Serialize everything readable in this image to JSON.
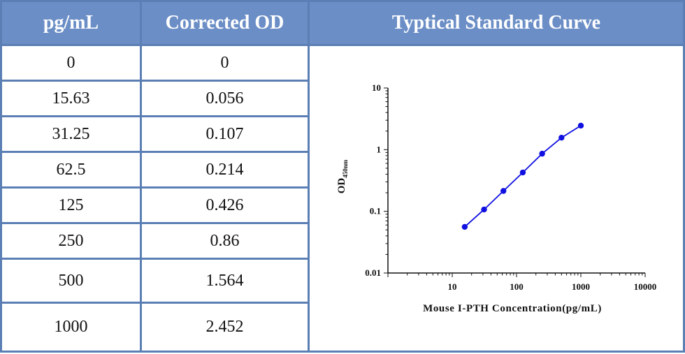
{
  "table": {
    "headers": [
      "pg/mL",
      "Corrected OD",
      "Typtical Standard Curve"
    ],
    "rows": [
      {
        "conc": "0",
        "od": "0"
      },
      {
        "conc": "15.63",
        "od": "0.056"
      },
      {
        "conc": "31.25",
        "od": "0.107"
      },
      {
        "conc": "62.5",
        "od": "0.214"
      },
      {
        "conc": "125",
        "od": "0.426"
      },
      {
        "conc": "250",
        "od": "0.86"
      },
      {
        "conc": "500",
        "od": "1.564"
      },
      {
        "conc": "1000",
        "od": "2.452"
      }
    ]
  },
  "chart_data": {
    "type": "line",
    "xlabel": "Mouse I-PTH Concentration(pg/mL)",
    "ylabel_main": "OD",
    "ylabel_sub": "450nm",
    "xscale": "log",
    "yscale": "log",
    "xlim": [
      1,
      10000
    ],
    "ylim": [
      0.01,
      10
    ],
    "xticks": [
      "10",
      "100",
      "1000",
      "10000"
    ],
    "yticks": [
      "0.01",
      "0.1",
      "1",
      "10"
    ],
    "grid": false,
    "series": [
      {
        "x": [
          15.63,
          31.25,
          62.5,
          125,
          250,
          500,
          1000
        ],
        "y": [
          0.056,
          0.107,
          0.214,
          0.426,
          0.86,
          1.564,
          2.452
        ],
        "color": "#1010e0"
      }
    ]
  }
}
